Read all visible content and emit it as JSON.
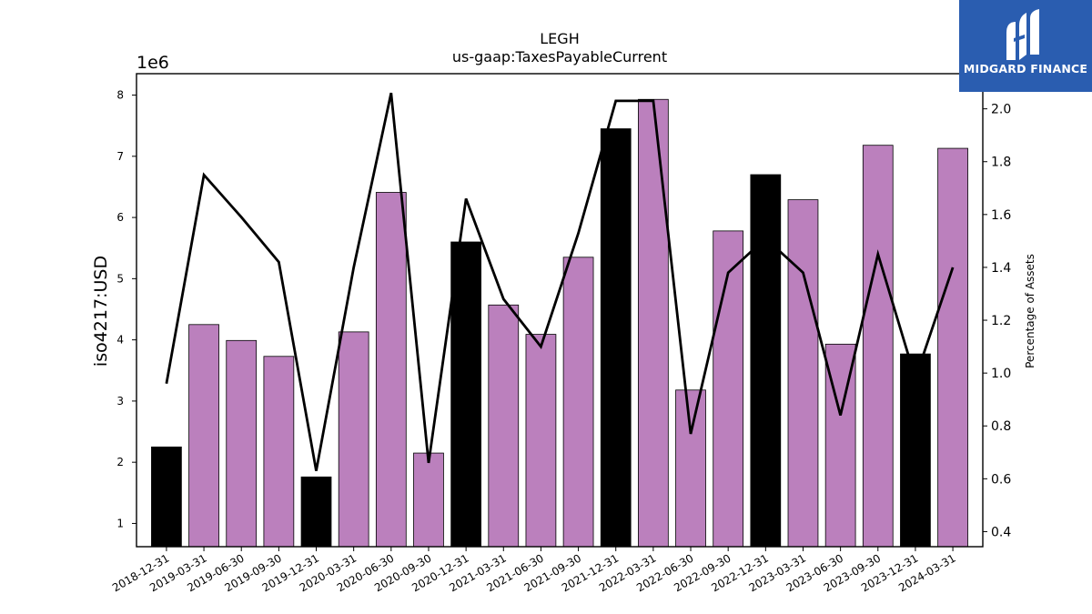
{
  "chart_data": {
    "type": "bar",
    "title": "LEGH",
    "subtitle": "us-gaap:TaxesPayableCurrent",
    "ylabel": "iso4217:USD",
    "y_offset_label": "1e6",
    "y2label": "Percentage of Assets",
    "categories": [
      "2018-12-31",
      "2019-03-31",
      "2019-06-30",
      "2019-09-30",
      "2019-12-31",
      "2020-03-31",
      "2020-06-30",
      "2020-09-30",
      "2020-12-31",
      "2021-03-31",
      "2021-06-30",
      "2021-09-30",
      "2021-12-31",
      "2022-03-31",
      "2022-06-30",
      "2022-09-30",
      "2022-12-31",
      "2023-03-31",
      "2023-06-30",
      "2023-09-30",
      "2023-12-31",
      "2024-03-31"
    ],
    "series": [
      {
        "type": "bar",
        "axis": "left",
        "values": [
          2.25,
          4.25,
          3.99,
          3.73,
          1.76,
          4.13,
          6.41,
          2.15,
          5.6,
          4.57,
          4.09,
          5.35,
          7.45,
          7.93,
          3.18,
          5.78,
          6.7,
          6.29,
          3.93,
          7.18,
          3.77,
          7.13
        ],
        "colors": [
          "#000000",
          "#bb80bd",
          "#bb80bd",
          "#bb80bd",
          "#000000",
          "#bb80bd",
          "#bb80bd",
          "#bb80bd",
          "#000000",
          "#bb80bd",
          "#bb80bd",
          "#bb80bd",
          "#000000",
          "#bb80bd",
          "#bb80bd",
          "#bb80bd",
          "#000000",
          "#bb80bd",
          "#bb80bd",
          "#bb80bd",
          "#000000",
          "#bb80bd"
        ]
      },
      {
        "type": "line",
        "axis": "right",
        "color": "#000000",
        "values": [
          0.96,
          1.75,
          1.59,
          1.42,
          0.63,
          1.4,
          2.06,
          0.66,
          1.66,
          1.28,
          1.1,
          1.53,
          2.03,
          2.03,
          0.77,
          1.38,
          1.51,
          1.38,
          0.84,
          1.45,
          0.98,
          1.4
        ]
      }
    ],
    "ylim": [
      0.62,
      8.35
    ],
    "yticks": [
      "1",
      "2",
      "3",
      "4",
      "5",
      "6",
      "7",
      "8"
    ],
    "y2lim": [
      0.343,
      2.133
    ],
    "y2ticks": [
      "0.4",
      "0.6",
      "0.8",
      "1.0",
      "1.2",
      "1.4",
      "1.6",
      "1.8",
      "2.0"
    ],
    "grid": false,
    "legend": "none"
  },
  "logo": {
    "text": "MIDGARD FINANCE",
    "icon": "midgard-m-logo-icon"
  }
}
